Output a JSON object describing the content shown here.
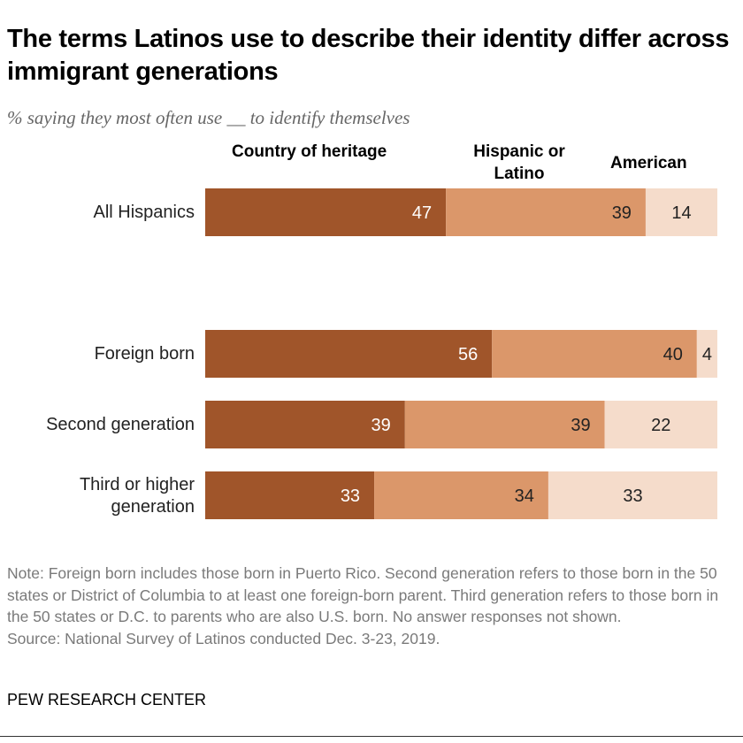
{
  "title": "The terms Latinos use to describe their identity differ across immigrant generations",
  "subtitle": "% saying they most often use __ to identify themselves",
  "note": "Note: Foreign born includes those born in Puerto Rico. Second generation refers to those born in the 50 states or District of Columbia to at least one foreign-born parent. Third generation refers to those born in the 50 states or D.C. to parents who are also U.S. born. No answer responses not shown.",
  "source": "Source: National Survey of Latinos conducted Dec. 3-23, 2019.",
  "brand": "PEW RESEARCH CENTER",
  "chart_data": {
    "type": "bar",
    "orientation": "horizontal",
    "stacked": true,
    "categories": [
      "All Hispanics",
      "Foreign born",
      "Second generation",
      "Third or higher generation"
    ],
    "series": [
      {
        "name": "Country of heritage",
        "values": [
          47,
          56,
          39,
          33
        ],
        "color": "#A0552A"
      },
      {
        "name": "Hispanic or Latino",
        "values": [
          39,
          40,
          39,
          34
        ],
        "color": "#DB976A"
      },
      {
        "name": "American",
        "values": [
          14,
          4,
          22,
          33
        ],
        "color": "#F5DCCB"
      }
    ],
    "legend_placement": "top",
    "xlim": [
      0,
      100
    ],
    "grid": false
  }
}
